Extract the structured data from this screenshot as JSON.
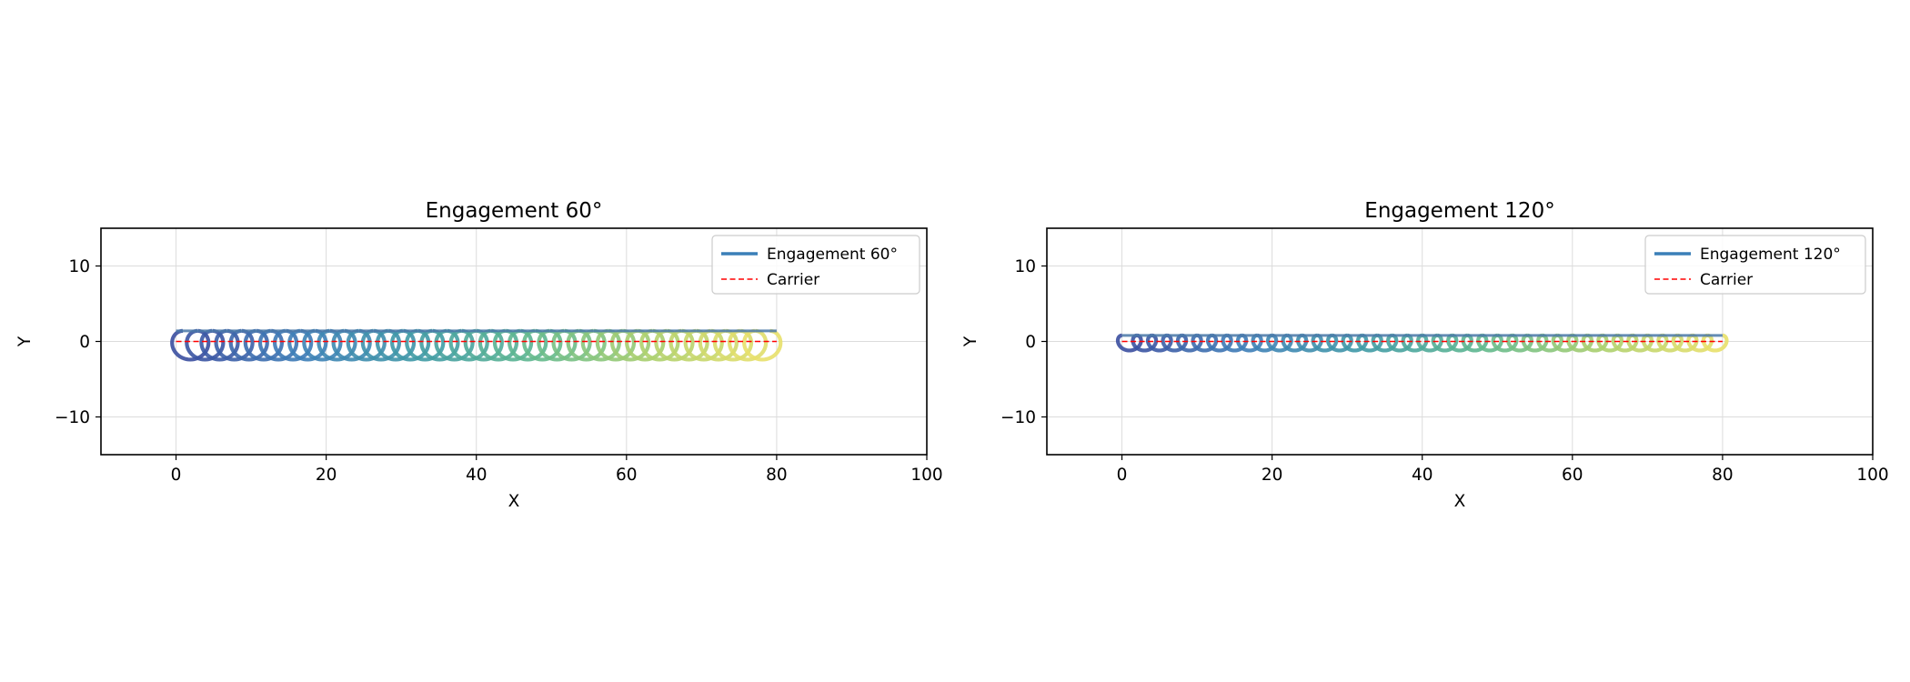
{
  "chart_data": [
    {
      "type": "line",
      "title": "Engagement 60°",
      "xlabel": "X",
      "ylabel": "Y",
      "xlim": [
        -10,
        100
      ],
      "ylim": [
        -15,
        15
      ],
      "xticks": [
        0,
        20,
        40,
        60,
        80,
        100
      ],
      "yticks": [
        -10,
        0,
        10
      ],
      "grid": true,
      "legend_position": "top-right",
      "colormap": [
        "#3b4fa0",
        "#3e7fb8",
        "#3f9aa6",
        "#5fb88f",
        "#a9cf6e",
        "#e8e06a"
      ],
      "series": [
        {
          "name": "Engagement 60°",
          "color": "#3a7fb8",
          "style": "solid",
          "pattern": "trochoid",
          "x_range": [
            0,
            80
          ],
          "loops": 40,
          "loop_radius": 1.9,
          "y_center": -0.5
        },
        {
          "name": "Carrier",
          "color": "#ff0000",
          "style": "dashed",
          "x": [
            0,
            80
          ],
          "y": [
            0,
            0
          ]
        }
      ]
    },
    {
      "type": "line",
      "title": "Engagement 120°",
      "xlabel": "X",
      "ylabel": "Y",
      "xlim": [
        -10,
        100
      ],
      "ylim": [
        -15,
        15
      ],
      "xticks": [
        0,
        20,
        40,
        60,
        80,
        100
      ],
      "yticks": [
        -10,
        0,
        10
      ],
      "grid": true,
      "legend_position": "top-right",
      "colormap": [
        "#3b4fa0",
        "#3e7fb8",
        "#3f9aa6",
        "#5fb88f",
        "#a9cf6e",
        "#e8e06a"
      ],
      "series": [
        {
          "name": "Engagement 120°",
          "color": "#3a7fb8",
          "style": "solid",
          "pattern": "trochoid",
          "x_range": [
            0,
            80
          ],
          "loops": 40,
          "loop_radius": 1.0,
          "y_center": -0.2
        },
        {
          "name": "Carrier",
          "color": "#ff0000",
          "style": "dashed",
          "x": [
            0,
            80
          ],
          "y": [
            0,
            0
          ]
        }
      ]
    }
  ]
}
